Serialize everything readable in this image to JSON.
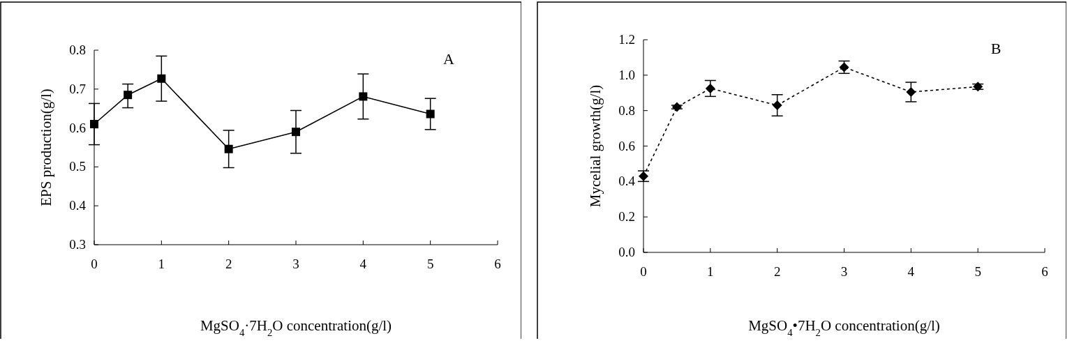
{
  "chart_data": [
    {
      "type": "line",
      "xlabel": "MgSO$_{4}$·7H$_{2}$O concentration(g/l)",
      "ylabel": "EPS production(g/l)",
      "annotations": [
        "A"
      ],
      "marker": "square",
      "line_style": "solid",
      "series": [
        {
          "color": "#000000",
          "x": [
            0,
            0.5,
            1,
            2,
            3,
            4,
            5
          ],
          "values": [
            0.61,
            0.685,
            0.727,
            0.546,
            0.59,
            0.681,
            0.636
          ],
          "errors": [
            0.053,
            [
              0.652,
              0.713
            ],
            0.058,
            0.048,
            0.055,
            0.058,
            0.04
          ]
        }
      ],
      "xlim": [
        0,
        6
      ],
      "xticks": [
        0,
        1,
        2,
        3,
        4,
        5,
        6
      ],
      "ylim": [
        0.3,
        0.8
      ],
      "yticks": [
        0.3,
        0.4,
        0.5,
        0.6,
        0.7,
        0.8
      ]
    },
    {
      "type": "line",
      "xlabel": "MgSO$_{4}$•7H$_{2}$O concentration(g/l)",
      "ylabel": "Mycelial growth(g/l)",
      "annotations": [
        "B"
      ],
      "marker": "diamond",
      "line_style": "dashed",
      "series": [
        {
          "color": "#000000",
          "x": [
            0,
            0.5,
            1,
            2,
            3,
            4,
            5
          ],
          "values": [
            0.43,
            0.82,
            0.925,
            0.83,
            1.045,
            0.905,
            0.935
          ],
          "errors": [
            0.03,
            0.01,
            0.045,
            0.06,
            0.035,
            0.055,
            0.015
          ]
        }
      ],
      "xlim": [
        0,
        6
      ],
      "xticks": [
        0,
        1,
        2,
        3,
        4,
        5,
        6
      ],
      "ylim": [
        0,
        1.2
      ],
      "yticks": [
        {
          "value": 0,
          "label": "0.0"
        },
        0.2,
        0.4,
        0.6,
        0.8,
        {
          "value": 1,
          "label": "1.0"
        },
        1.2
      ]
    }
  ]
}
